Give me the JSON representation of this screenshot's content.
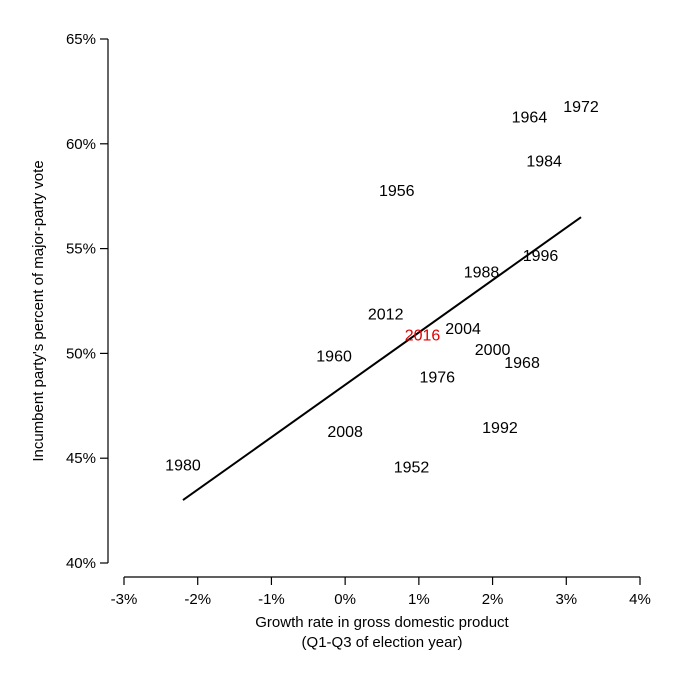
{
  "chart_data": {
    "type": "scatter",
    "xlabel": [
      "Growth rate in gross domestic product",
      "(Q1-Q3 of election year)"
    ],
    "ylabel": "Incumbent party's percent of major-party vote",
    "xlim": [
      -3,
      4
    ],
    "ylim": [
      40,
      65
    ],
    "x_ticks": [
      -3,
      -2,
      -1,
      0,
      1,
      2,
      3,
      4
    ],
    "x_tick_labels": [
      "-3%",
      "-2%",
      "-1%",
      "0%",
      "1%",
      "2%",
      "3%",
      "4%"
    ],
    "y_ticks": [
      40,
      45,
      50,
      55,
      60,
      65
    ],
    "y_tick_labels": [
      "40%",
      "45%",
      "50%",
      "55%",
      "60%",
      "65%"
    ],
    "points": [
      {
        "label": "1952",
        "x": 0.9,
        "y": 44.6
      },
      {
        "label": "1956",
        "x": 0.7,
        "y": 57.8
      },
      {
        "label": "1960",
        "x": -0.15,
        "y": 49.9
      },
      {
        "label": "1964",
        "x": 2.5,
        "y": 61.3
      },
      {
        "label": "1968",
        "x": 2.4,
        "y": 49.6
      },
      {
        "label": "1972",
        "x": 3.2,
        "y": 61.8
      },
      {
        "label": "1976",
        "x": 1.25,
        "y": 48.9
      },
      {
        "label": "1980",
        "x": -2.2,
        "y": 44.7
      },
      {
        "label": "1984",
        "x": 2.7,
        "y": 59.2
      },
      {
        "label": "1988",
        "x": 1.85,
        "y": 53.9
      },
      {
        "label": "1992",
        "x": 2.1,
        "y": 46.5
      },
      {
        "label": "1996",
        "x": 2.65,
        "y": 54.7
      },
      {
        "label": "2000",
        "x": 2.0,
        "y": 50.2
      },
      {
        "label": "2004",
        "x": 1.6,
        "y": 51.2
      },
      {
        "label": "2008",
        "x": 0.0,
        "y": 46.3
      },
      {
        "label": "2012",
        "x": 0.55,
        "y": 51.9
      },
      {
        "label": "2016",
        "x": 1.05,
        "y": 50.9,
        "color": "#e00000"
      }
    ],
    "fit_line": {
      "x": [
        -2.2,
        3.2
      ],
      "y": [
        43.0,
        56.5
      ]
    }
  }
}
